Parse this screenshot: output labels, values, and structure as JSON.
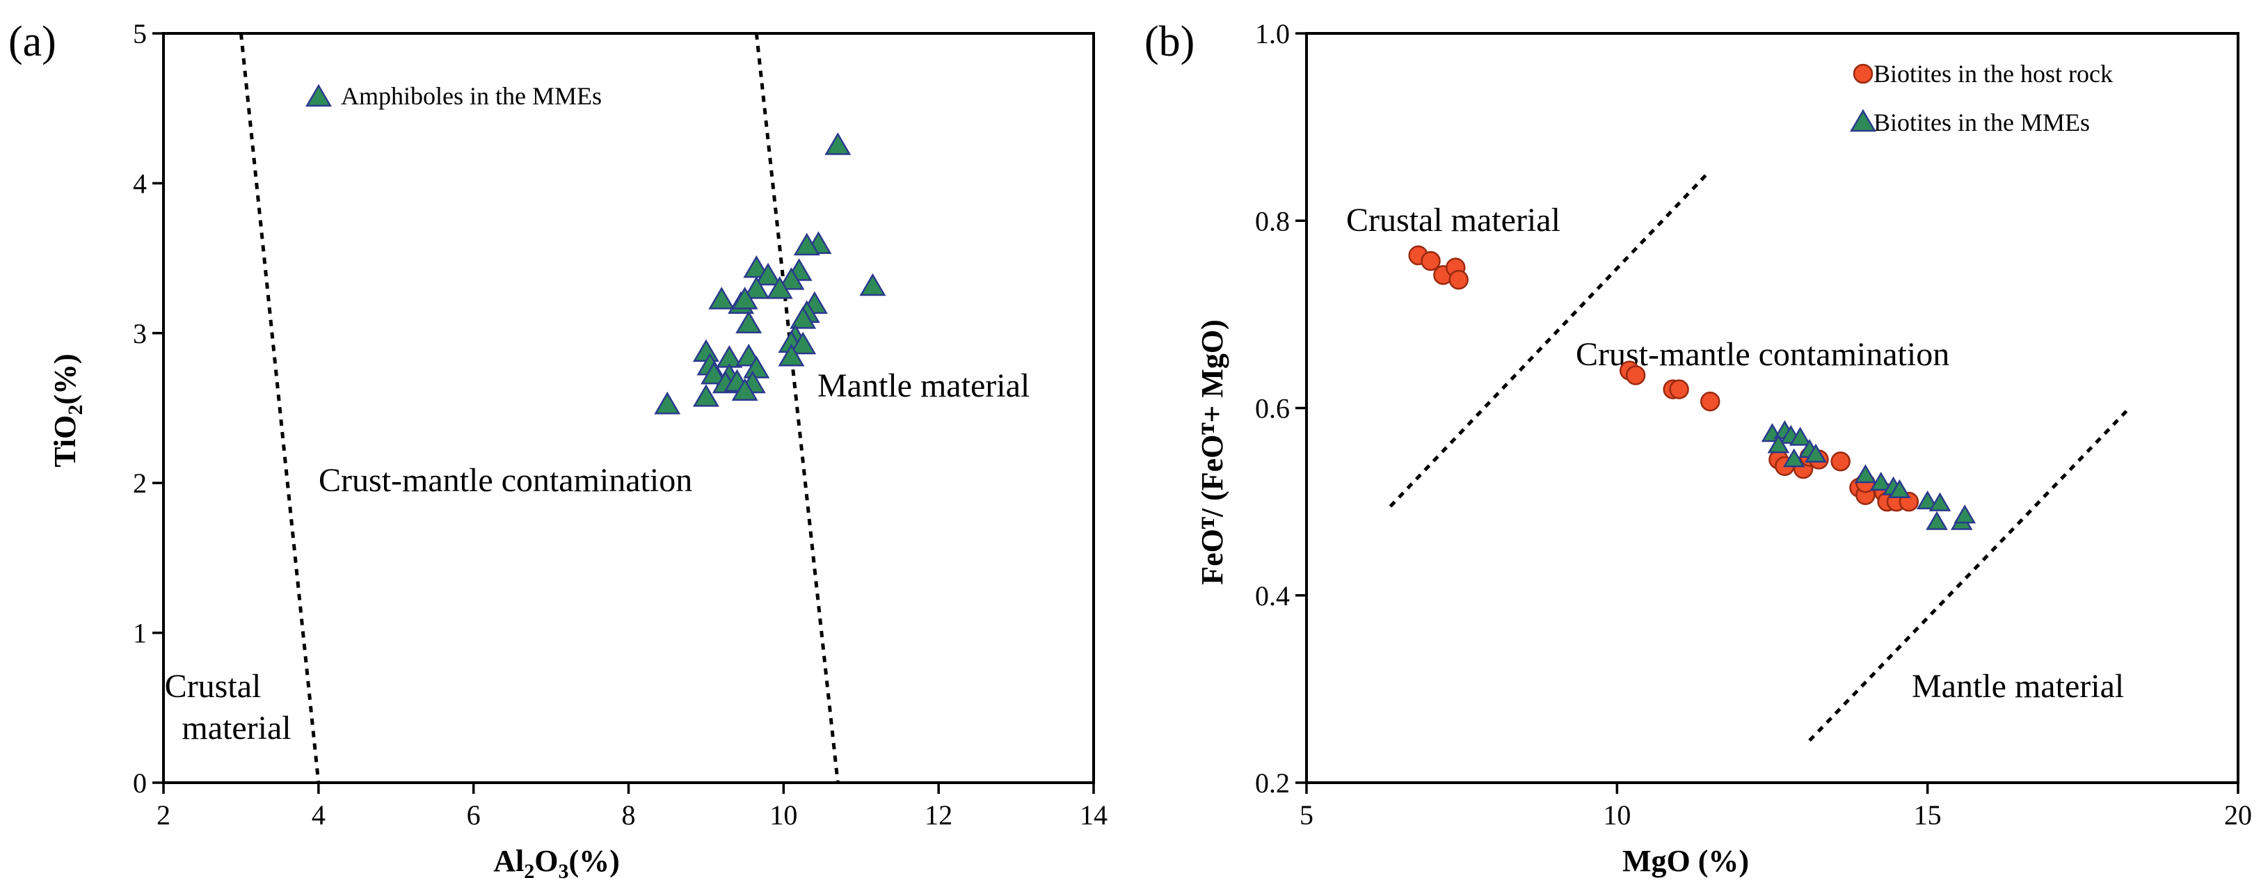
{
  "panels": {
    "a": {
      "label": "(a)",
      "xlabel_main": "Al",
      "xlabel_sub1": "2",
      "xlabel_mid": "O",
      "xlabel_sub2": "3",
      "xlabel_tail": "(%)",
      "ylabel_main": "TiO",
      "ylabel_sub": "2",
      "ylabel_tail": "(%)",
      "legend": "Amphiboles in the MMEs",
      "regions": {
        "crustal_line1": "Crustal",
        "crustal_line2": "material",
        "contamination": "Crust-mantle contamination",
        "mantle": "Mantle material"
      }
    },
    "b": {
      "label": "(b)",
      "xlabel": "MgO (%)",
      "ylabel": "FeOᵀ/ (FeOᵀ+ MgO)",
      "legend1": "Biotites in the host rock",
      "legend2": "Biotites in the MMEs",
      "regions": {
        "crustal": "Crustal material",
        "contamination": "Crust-mantle contamination",
        "mantle": "Mantle material"
      }
    }
  },
  "colors": {
    "triangle_fill": "#2e8b57",
    "triangle_stroke": "#2b3a8c",
    "circle_fill": "#f0502a",
    "circle_stroke": "#9a2a10"
  },
  "chart_data": [
    {
      "type": "scatter",
      "panel": "a",
      "title": "",
      "xlabel": "Al2O3(%)",
      "ylabel": "TiO2(%)",
      "xlim": [
        2,
        14
      ],
      "ylim": [
        0,
        5
      ],
      "xticks": [
        2,
        4,
        6,
        8,
        10,
        12,
        14
      ],
      "yticks": [
        0,
        1,
        2,
        3,
        4,
        5
      ],
      "boundaries": [
        {
          "x": [
            3.0,
            4.0
          ],
          "y": [
            5,
            0
          ]
        },
        {
          "x": [
            9.65,
            10.7
          ],
          "y": [
            5,
            0
          ]
        }
      ],
      "series": [
        {
          "name": "Amphiboles in the MMEs",
          "marker": "triangle",
          "x": [
            10.7,
            10.45,
            10.3,
            11.15,
            9.65,
            9.8,
            10.2,
            10.1,
            9.95,
            9.65,
            9.2,
            9.45,
            9.5,
            10.4,
            10.3,
            10.25,
            9.55,
            10.15,
            10.1,
            10.25,
            10.1,
            9.0,
            9.3,
            9.05,
            9.55,
            9.65,
            9.3,
            9.1,
            9.25,
            9.4,
            9.6,
            9.5,
            9.0,
            8.5
          ],
          "y": [
            4.25,
            3.59,
            3.58,
            3.31,
            3.43,
            3.38,
            3.41,
            3.35,
            3.29,
            3.29,
            3.22,
            3.19,
            3.22,
            3.19,
            3.13,
            3.09,
            3.06,
            2.97,
            2.93,
            2.92,
            2.84,
            2.87,
            2.83,
            2.78,
            2.84,
            2.76,
            2.71,
            2.72,
            2.66,
            2.67,
            2.66,
            2.61,
            2.57,
            2.52
          ]
        }
      ]
    },
    {
      "type": "scatter",
      "panel": "b",
      "title": "",
      "xlabel": "MgO (%)",
      "ylabel": "FeOT/ (FeOT+ MgO)",
      "xlim": [
        5,
        20
      ],
      "ylim": [
        0.2,
        1.0
      ],
      "xticks": [
        5,
        10,
        15,
        20
      ],
      "yticks": [
        0.2,
        0.4,
        0.6,
        0.8,
        1.0
      ],
      "boundaries": [
        {
          "x": [
            6.35,
            11.45
          ],
          "y": [
            0.495,
            0.85
          ]
        },
        {
          "x": [
            13.1,
            18.25
          ],
          "y": [
            0.245,
            0.6
          ]
        }
      ],
      "series": [
        {
          "name": "Biotites in the host rock",
          "marker": "circle",
          "x": [
            6.8,
            7.0,
            7.2,
            7.4,
            7.45,
            10.2,
            10.3,
            10.9,
            11.0,
            11.5,
            12.6,
            12.7,
            13.0,
            13.1,
            13.25,
            13.6,
            13.9,
            14.0,
            14.0,
            14.3,
            14.35,
            14.5,
            14.7
          ],
          "y": [
            0.763,
            0.757,
            0.742,
            0.75,
            0.737,
            0.64,
            0.635,
            0.62,
            0.62,
            0.607,
            0.545,
            0.538,
            0.535,
            0.548,
            0.545,
            0.543,
            0.515,
            0.507,
            0.52,
            0.51,
            0.5,
            0.5,
            0.5
          ]
        },
        {
          "name": "Biotites in the MMEs",
          "marker": "triangle",
          "x": [
            12.5,
            12.7,
            12.8,
            12.95,
            12.6,
            13.1,
            13.2,
            12.85,
            14.0,
            14.25,
            14.45,
            14.55,
            15.0,
            15.2,
            15.55,
            15.15,
            15.6
          ],
          "y": [
            0.572,
            0.575,
            0.57,
            0.568,
            0.56,
            0.555,
            0.55,
            0.545,
            0.528,
            0.52,
            0.515,
            0.512,
            0.5,
            0.498,
            0.478,
            0.478,
            0.485
          ]
        }
      ]
    }
  ]
}
